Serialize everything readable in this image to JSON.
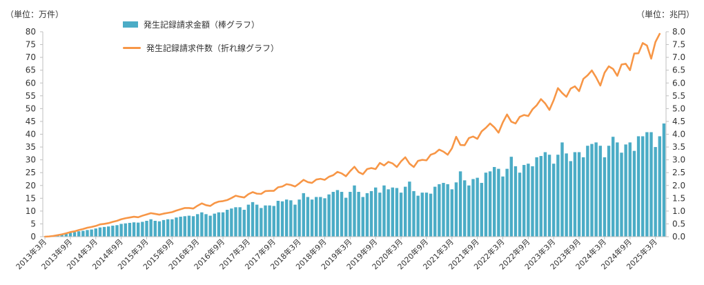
{
  "chart_data": {
    "type": "bar",
    "left_unit": "（単位：万件）",
    "right_unit": "（単位：兆円）",
    "colors": {
      "bar": "#4bacc6",
      "line": "#f79646",
      "axis": "#bfbfbf",
      "text": "#333333"
    },
    "y_left": {
      "min": 0,
      "max": 80,
      "ticks": [
        "0",
        "5",
        "10",
        "15",
        "20",
        "25",
        "30",
        "35",
        "40",
        "45",
        "50",
        "55",
        "60",
        "65",
        "70",
        "75",
        "80"
      ]
    },
    "y_right": {
      "min": 0,
      "max": 8,
      "ticks": [
        "0.0",
        "0.5",
        "1.0",
        "1.5",
        "2.0",
        "2.5",
        "3.0",
        "3.5",
        "4.0",
        "4.5",
        "5.0",
        "5.5",
        "6.0",
        "6.5",
        "7.0",
        "7.5",
        "8.0"
      ]
    },
    "x_labels": [
      "2013年3月",
      "2013年9月",
      "2014年3月",
      "2014年9月",
      "2015年3月",
      "2015年9月",
      "2016年3月",
      "2016年9月",
      "2017年3月",
      "2017年9月",
      "2018年3月",
      "2018年9月",
      "2019年3月",
      "2019年9月",
      "2020年3月",
      "2020年9月",
      "2021年3月",
      "2021年9月",
      "2022年3月",
      "2022年9月",
      "2023年3月",
      "2023年9月",
      "2024年3月",
      "2024年9月",
      "2025年3月"
    ],
    "legend": "top-left",
    "grid": false,
    "series": [
      {
        "name": "発生記録請求金額（棒グラフ）",
        "type": "bar",
        "axis": "right",
        "values": [
          0.0,
          0.02,
          0.04,
          0.06,
          0.08,
          0.12,
          0.15,
          0.18,
          0.21,
          0.23,
          0.26,
          0.28,
          0.32,
          0.36,
          0.38,
          0.4,
          0.43,
          0.45,
          0.5,
          0.52,
          0.54,
          0.56,
          0.55,
          0.58,
          0.62,
          0.68,
          0.62,
          0.6,
          0.65,
          0.68,
          0.68,
          0.75,
          0.78,
          0.8,
          0.82,
          0.8,
          0.88,
          0.95,
          0.88,
          0.82,
          0.9,
          0.95,
          0.95,
          1.05,
          1.1,
          1.15,
          1.15,
          1.05,
          1.25,
          1.35,
          1.25,
          1.12,
          1.22,
          1.22,
          1.2,
          1.4,
          1.38,
          1.45,
          1.42,
          1.25,
          1.45,
          1.7,
          1.55,
          1.45,
          1.55,
          1.55,
          1.5,
          1.65,
          1.75,
          1.82,
          1.75,
          1.52,
          1.75,
          2.0,
          1.75,
          1.55,
          1.7,
          1.78,
          1.92,
          1.72,
          2.0,
          1.85,
          1.92,
          1.9,
          1.72,
          1.95,
          2.15,
          1.78,
          1.6,
          1.72,
          1.72,
          1.68,
          1.95,
          2.05,
          2.1,
          2.05,
          1.85,
          2.12,
          2.55,
          2.2,
          2.0,
          2.25,
          2.3,
          2.1,
          2.5,
          2.55,
          2.72,
          2.65,
          2.35,
          2.65,
          3.12,
          2.75,
          2.5,
          2.8,
          2.85,
          2.75,
          3.1,
          3.15,
          3.3,
          3.2,
          2.85,
          3.2,
          3.68,
          3.25,
          2.95,
          3.3,
          3.3,
          3.1,
          3.55,
          3.62,
          3.68,
          3.55,
          3.1,
          3.55,
          3.9,
          3.68,
          3.28,
          3.6,
          3.68,
          3.35,
          3.92,
          3.92,
          4.08,
          4.08,
          3.5,
          3.92,
          4.42
        ]
      },
      {
        "name": "発生記録請求件数（折れ線グラフ）",
        "type": "line",
        "axis": "left",
        "values": [
          0.0,
          0.1,
          0.3,
          0.6,
          0.9,
          1.3,
          1.8,
          2.1,
          2.6,
          3.0,
          3.5,
          3.8,
          4.2,
          4.8,
          5.0,
          5.3,
          5.8,
          6.2,
          6.8,
          7.2,
          7.5,
          7.8,
          7.6,
          8.2,
          8.7,
          9.2,
          8.9,
          8.6,
          9.0,
          9.3,
          9.6,
          10.2,
          10.7,
          11.2,
          11.2,
          11.0,
          12.1,
          13.0,
          12.3,
          12.0,
          13.1,
          13.7,
          13.9,
          14.3,
          15.1,
          16.0,
          15.6,
          15.3,
          16.6,
          17.4,
          16.8,
          16.7,
          17.8,
          17.9,
          17.9,
          19.3,
          19.6,
          20.5,
          20.2,
          19.6,
          20.8,
          22.2,
          21.3,
          21.0,
          22.3,
          22.6,
          22.2,
          23.4,
          24.0,
          25.3,
          24.7,
          23.6,
          25.6,
          27.3,
          25.2,
          24.4,
          26.4,
          26.8,
          26.4,
          28.8,
          27.8,
          29.2,
          28.6,
          27.2,
          29.4,
          31.0,
          28.5,
          27.2,
          29.6,
          30.0,
          29.8,
          32.0,
          32.6,
          34.0,
          33.2,
          32.0,
          34.5,
          39.0,
          35.8,
          35.7,
          38.5,
          39.1,
          38.2,
          41.1,
          42.5,
          44.2,
          42.7,
          40.6,
          44.6,
          47.7,
          44.9,
          44.2,
          46.8,
          47.5,
          47.1,
          49.7,
          51.3,
          53.7,
          52.0,
          49.5,
          53.3,
          58.0,
          56.1,
          54.6,
          57.8,
          58.7,
          56.8,
          61.6,
          63.0,
          64.9,
          62.2,
          59.0,
          64.0,
          66.5,
          65.5,
          62.8,
          67.2,
          67.5,
          65.0,
          71.5,
          71.6,
          75.6,
          74.6,
          69.5,
          76.0,
          79.2
        ]
      }
    ]
  }
}
